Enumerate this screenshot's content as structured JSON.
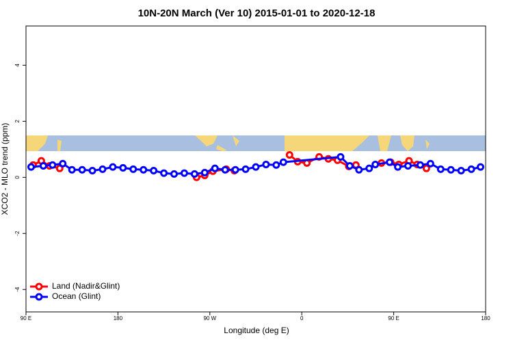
{
  "chart_data": {
    "type": "line",
    "title": "10N-20N March (Ver 10)   2015-01-01 to 2020-12-18",
    "x_label": "Longitude (deg E)",
    "y_label": "XCO2 - MLO trend (ppm)",
    "xlim": [
      90,
      540
    ],
    "ylim": [
      -4.8,
      5.4
    ],
    "xticks": [
      {
        "value": 90,
        "label": "90 E"
      },
      180,
      {
        "value": 270,
        "label": "90 W"
      },
      {
        "value": 360,
        "label": "0"
      },
      {
        "value": 450,
        "label": "90 E"
      },
      {
        "value": 540,
        "label": "180"
      }
    ],
    "yticks": [
      -4,
      -2,
      0,
      2,
      4
    ],
    "legend": "bottomleft",
    "series": [
      {
        "name": "Land (Nadir&Glint)",
        "color": "#ff0000",
        "x": [
          97,
          105,
          113,
          123,
          null,
          257,
          265,
          273,
          286,
          294,
          null,
          348,
          356,
          365,
          377,
          386,
          395,
          406,
          413,
          null,
          438,
          447,
          455,
          465,
          473,
          482
        ],
        "values": [
          0.44,
          0.59,
          0.41,
          0.32,
          null,
          0.0,
          0.07,
          0.22,
          0.29,
          0.24,
          null,
          0.8,
          0.56,
          0.51,
          0.73,
          0.66,
          0.61,
          0.39,
          0.44,
          null,
          0.51,
          0.54,
          0.46,
          0.59,
          0.46,
          0.32
        ]
      },
      {
        "name": "Ocean (Glint)",
        "color": "#0000ff",
        "x": [
          95,
          107,
          116,
          126,
          135,
          145,
          155,
          165,
          175,
          185,
          195,
          205,
          215,
          225,
          235,
          245,
          255,
          265,
          275,
          285,
          295,
          305,
          315,
          325,
          335,
          342,
          398,
          407,
          416,
          426,
          432,
          446,
          454,
          464,
          476,
          486,
          496,
          506,
          516,
          526,
          535
        ],
        "values": [
          0.37,
          0.41,
          0.44,
          0.49,
          0.27,
          0.27,
          0.24,
          0.29,
          0.37,
          0.34,
          0.29,
          0.27,
          0.24,
          0.15,
          0.12,
          0.15,
          0.12,
          0.17,
          0.32,
          0.27,
          0.27,
          0.29,
          0.37,
          0.46,
          0.44,
          0.54,
          0.73,
          0.41,
          0.27,
          0.32,
          0.46,
          0.54,
          0.37,
          0.41,
          0.44,
          0.49,
          0.29,
          0.27,
          0.24,
          0.29,
          0.37
        ]
      }
    ]
  }
}
